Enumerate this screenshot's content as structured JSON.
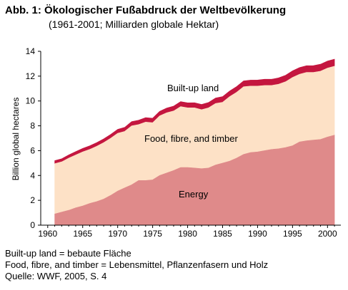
{
  "header": {
    "title": "Abb. 1: Ökologischer Fußabdruck der Weltbevölkerung",
    "subtitle": "(1961-2001; Milliarden globale Hektar)"
  },
  "footnotes": [
    "Built-up land = bebaute Fläche",
    "Food, fibre, and timber = Lebensmittel, Pflanzenfasern und Holz",
    "Quelle: WWF, 2005, S. 4"
  ],
  "colors": {
    "energy": "#df8a8a",
    "food": "#fde1c6",
    "builtup": "#c4163f",
    "axis": "#000000"
  },
  "chart_data": {
    "type": "area",
    "stacked": true,
    "title": "Abb. 1: Ökologischer Fußabdruck der Weltbevölkerung",
    "subtitle": "(1961-2001; Milliarden globale Hektar)",
    "xlabel": "",
    "ylabel": "Billion global hectares",
    "xlim": [
      1959,
      2001.5
    ],
    "ylim": [
      0,
      14
    ],
    "xticks": [
      1960,
      1965,
      1970,
      1975,
      1980,
      1985,
      1990,
      1995,
      2000
    ],
    "yticks": [
      0,
      2,
      4,
      6,
      8,
      10,
      12,
      14
    ],
    "grid": false,
    "x": [
      1961,
      1962,
      1963,
      1964,
      1965,
      1966,
      1967,
      1968,
      1969,
      1970,
      1971,
      1972,
      1973,
      1974,
      1975,
      1976,
      1977,
      1978,
      1979,
      1980,
      1981,
      1982,
      1983,
      1984,
      1985,
      1986,
      1987,
      1988,
      1989,
      1990,
      1991,
      1992,
      1993,
      1994,
      1995,
      1996,
      1997,
      1998,
      1999,
      2000,
      2001
    ],
    "series": [
      {
        "name": "Energy",
        "values": [
          0.9,
          1.05,
          1.2,
          1.4,
          1.55,
          1.75,
          1.9,
          2.1,
          2.4,
          2.75,
          3.0,
          3.25,
          3.6,
          3.6,
          3.65,
          4.0,
          4.2,
          4.4,
          4.65,
          4.65,
          4.6,
          4.55,
          4.6,
          4.85,
          5.0,
          5.15,
          5.4,
          5.7,
          5.85,
          5.9,
          6.0,
          6.1,
          6.15,
          6.25,
          6.4,
          6.7,
          6.8,
          6.85,
          6.9,
          7.1,
          7.25
        ]
      },
      {
        "name": "Food, fibre, and timber",
        "values": [
          4.05,
          4.05,
          4.2,
          4.25,
          4.35,
          4.35,
          4.45,
          4.55,
          4.6,
          4.65,
          4.55,
          4.75,
          4.5,
          4.7,
          4.6,
          4.8,
          4.85,
          4.8,
          4.9,
          4.8,
          4.85,
          4.75,
          4.85,
          4.95,
          4.9,
          5.2,
          5.3,
          5.45,
          5.35,
          5.3,
          5.25,
          5.15,
          5.2,
          5.3,
          5.5,
          5.45,
          5.5,
          5.45,
          5.5,
          5.55,
          5.55
        ]
      },
      {
        "name": "Built-up land",
        "values": [
          0.25,
          0.25,
          0.26,
          0.27,
          0.28,
          0.29,
          0.3,
          0.3,
          0.31,
          0.32,
          0.33,
          0.34,
          0.35,
          0.36,
          0.36,
          0.37,
          0.38,
          0.39,
          0.4,
          0.4,
          0.41,
          0.42,
          0.43,
          0.44,
          0.45,
          0.45,
          0.46,
          0.47,
          0.48,
          0.49,
          0.5,
          0.5,
          0.51,
          0.52,
          0.53,
          0.54,
          0.54,
          0.55,
          0.56,
          0.57,
          0.57
        ]
      }
    ]
  }
}
